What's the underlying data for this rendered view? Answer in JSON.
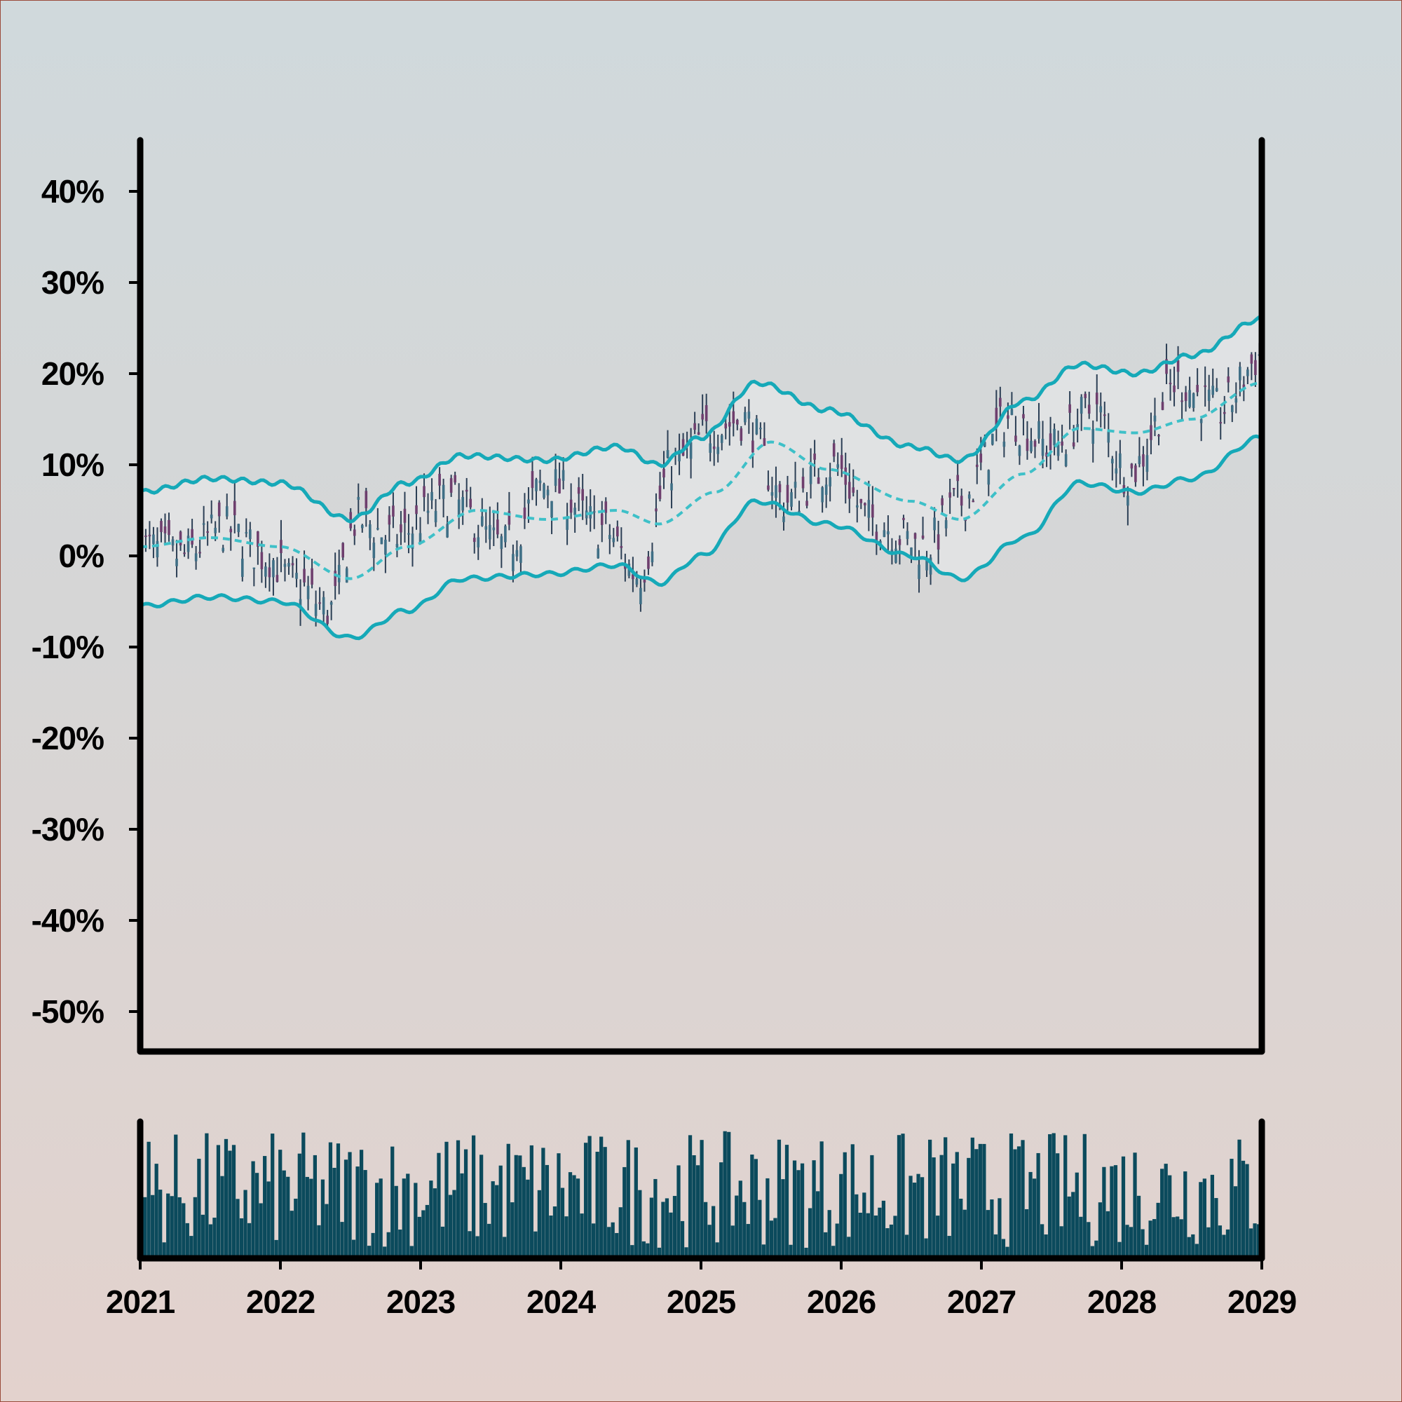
{
  "chart_data": {
    "type": "candlestick",
    "x_axis": {
      "tick_labels": [
        "2021",
        "2022",
        "2023",
        "2024",
        "2025",
        "2026",
        "2027",
        "2028",
        "2029"
      ],
      "range": [
        "2021-01-01",
        "2029-01-01"
      ]
    },
    "y_axis": {
      "tick_labels": [
        "40%",
        "30%",
        "20%",
        "10%",
        "0%",
        "-10%",
        "-20%",
        "-30%",
        "-40%",
        "-50%"
      ],
      "tick_values": [
        40,
        30,
        20,
        10,
        0,
        -10,
        -20,
        -30,
        -40,
        -50
      ],
      "range": [
        -55,
        46
      ],
      "unit": "%"
    },
    "grid": false,
    "legend": "none",
    "colors": {
      "up": "#3f6f86",
      "down": "#6e3f6e",
      "band": "#16a9b8",
      "middle": "#3ec0c8",
      "volume": "#0b4a5c",
      "axes": "#000000"
    },
    "price_path": {
      "description_values_percent_at_year": [
        [
          "2021.0",
          1
        ],
        [
          "2021.3",
          0
        ],
        [
          "2021.6",
          3
        ],
        [
          "2021.9",
          0
        ],
        [
          "2022.1",
          -3
        ],
        [
          "2022.35",
          -6
        ],
        [
          "2022.55",
          4
        ],
        [
          "2022.8",
          2
        ],
        [
          "2023.2",
          6
        ],
        [
          "2023.6",
          1
        ],
        [
          "2023.9",
          8
        ],
        [
          "2024.3",
          3
        ],
        [
          "2024.55",
          -2
        ],
        [
          "2024.8",
          10
        ],
        [
          "2025.1",
          14
        ],
        [
          "2025.3",
          15
        ],
        [
          "2025.6",
          6
        ],
        [
          "2025.95",
          10
        ],
        [
          "2026.2",
          4
        ],
        [
          "2026.6",
          1
        ],
        [
          "2026.85",
          6
        ],
        [
          "2027.2",
          15
        ],
        [
          "2027.5",
          12
        ],
        [
          "2027.8",
          16
        ],
        [
          "2028.05",
          9
        ],
        [
          "2028.4",
          19
        ],
        [
          "2028.7",
          16
        ],
        [
          "2029.0",
          22
        ]
      ]
    },
    "bands": {
      "upper_at_year": [
        [
          "2021.0",
          7
        ],
        [
          "2021.5",
          8.5
        ],
        [
          "2022.0",
          8
        ],
        [
          "2022.5",
          4
        ],
        [
          "2022.9",
          8
        ],
        [
          "2023.3",
          11
        ],
        [
          "2023.9",
          10.5
        ],
        [
          "2024.4",
          12
        ],
        [
          "2024.7",
          10
        ],
        [
          "2025.0",
          13
        ],
        [
          "2025.4",
          19
        ],
        [
          "2025.9",
          16
        ],
        [
          "2026.5",
          12
        ],
        [
          "2026.85",
          10.5
        ],
        [
          "2027.3",
          17
        ],
        [
          "2027.7",
          21
        ],
        [
          "2028.1",
          20
        ],
        [
          "2028.5",
          22
        ],
        [
          "2029.0",
          26
        ]
      ],
      "middle_at_year": [
        [
          "2021.0",
          1
        ],
        [
          "2021.5",
          2
        ],
        [
          "2022.0",
          1
        ],
        [
          "2022.5",
          -2.5
        ],
        [
          "2022.9",
          1
        ],
        [
          "2023.4",
          5
        ],
        [
          "2023.9",
          4
        ],
        [
          "2024.4",
          5
        ],
        [
          "2024.7",
          3.5
        ],
        [
          "2025.1",
          7
        ],
        [
          "2025.5",
          12.5
        ],
        [
          "2025.9",
          9.5
        ],
        [
          "2026.5",
          6
        ],
        [
          "2026.85",
          4
        ],
        [
          "2027.3",
          9
        ],
        [
          "2027.7",
          14
        ],
        [
          "2028.1",
          13.5
        ],
        [
          "2028.5",
          15
        ],
        [
          "2029.0",
          19
        ]
      ],
      "lower_at_year": [
        [
          "2021.0",
          -5.5
        ],
        [
          "2021.5",
          -4.5
        ],
        [
          "2022.0",
          -5
        ],
        [
          "2022.5",
          -9
        ],
        [
          "2022.9",
          -6
        ],
        [
          "2023.3",
          -2.5
        ],
        [
          "2023.9",
          -2
        ],
        [
          "2024.4",
          -1
        ],
        [
          "2024.7",
          -3
        ],
        [
          "2025.0",
          0
        ],
        [
          "2025.4",
          6
        ],
        [
          "2025.9",
          3.5
        ],
        [
          "2026.5",
          0
        ],
        [
          "2026.85",
          -2.5
        ],
        [
          "2027.3",
          2
        ],
        [
          "2027.7",
          8
        ],
        [
          "2028.1",
          7
        ],
        [
          "2028.5",
          8.5
        ],
        [
          "2029.0",
          13
        ]
      ]
    },
    "volume": {
      "ylim": [
        0,
        1
      ],
      "relative_levels": "random bars between 0.05 and 1.0 of panel height"
    }
  }
}
